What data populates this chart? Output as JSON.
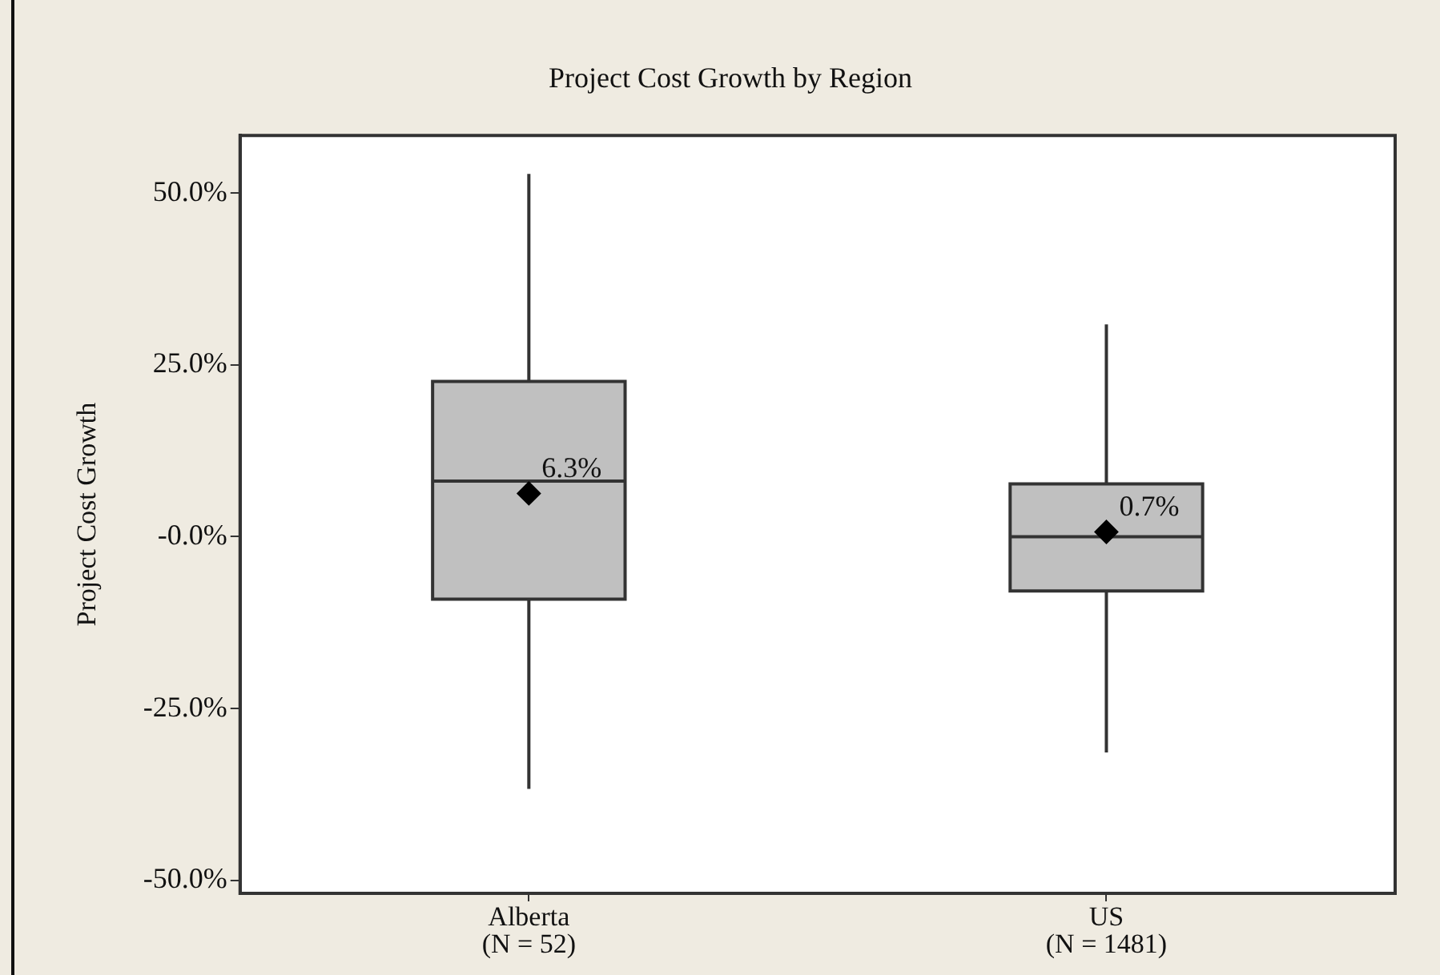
{
  "chart_data": {
    "type": "box",
    "title": "Project Cost Growth by Region",
    "ylabel": "Project Cost Growth",
    "categories": [
      "Alberta\n(N = 52)",
      "US\n(N = 1481)"
    ],
    "boxes": [
      {
        "low": -36.7,
        "q1": -9.1,
        "median": 8.1,
        "q3": 22.6,
        "high": 52.8,
        "mean": 6.3
      },
      {
        "low": -31.4,
        "q1": -7.9,
        "median": 0,
        "q3": 7.7,
        "high": 30.9,
        "mean": 0.7
      }
    ],
    "color": "#c0c0c0",
    "marker": "diamond",
    "ylim": [
      -51.9,
      58.4
    ],
    "yticks": [
      {
        "value": -50,
        "label": "-50.0%"
      },
      {
        "value": -25,
        "label": "-25.0%"
      },
      {
        "value": 0,
        "label": "-0.0%"
      },
      {
        "value": 25,
        "label": "25.0%"
      },
      {
        "value": 50,
        "label": "50.0%"
      }
    ],
    "annotations": [
      "6.3%",
      "0.7%"
    ]
  }
}
